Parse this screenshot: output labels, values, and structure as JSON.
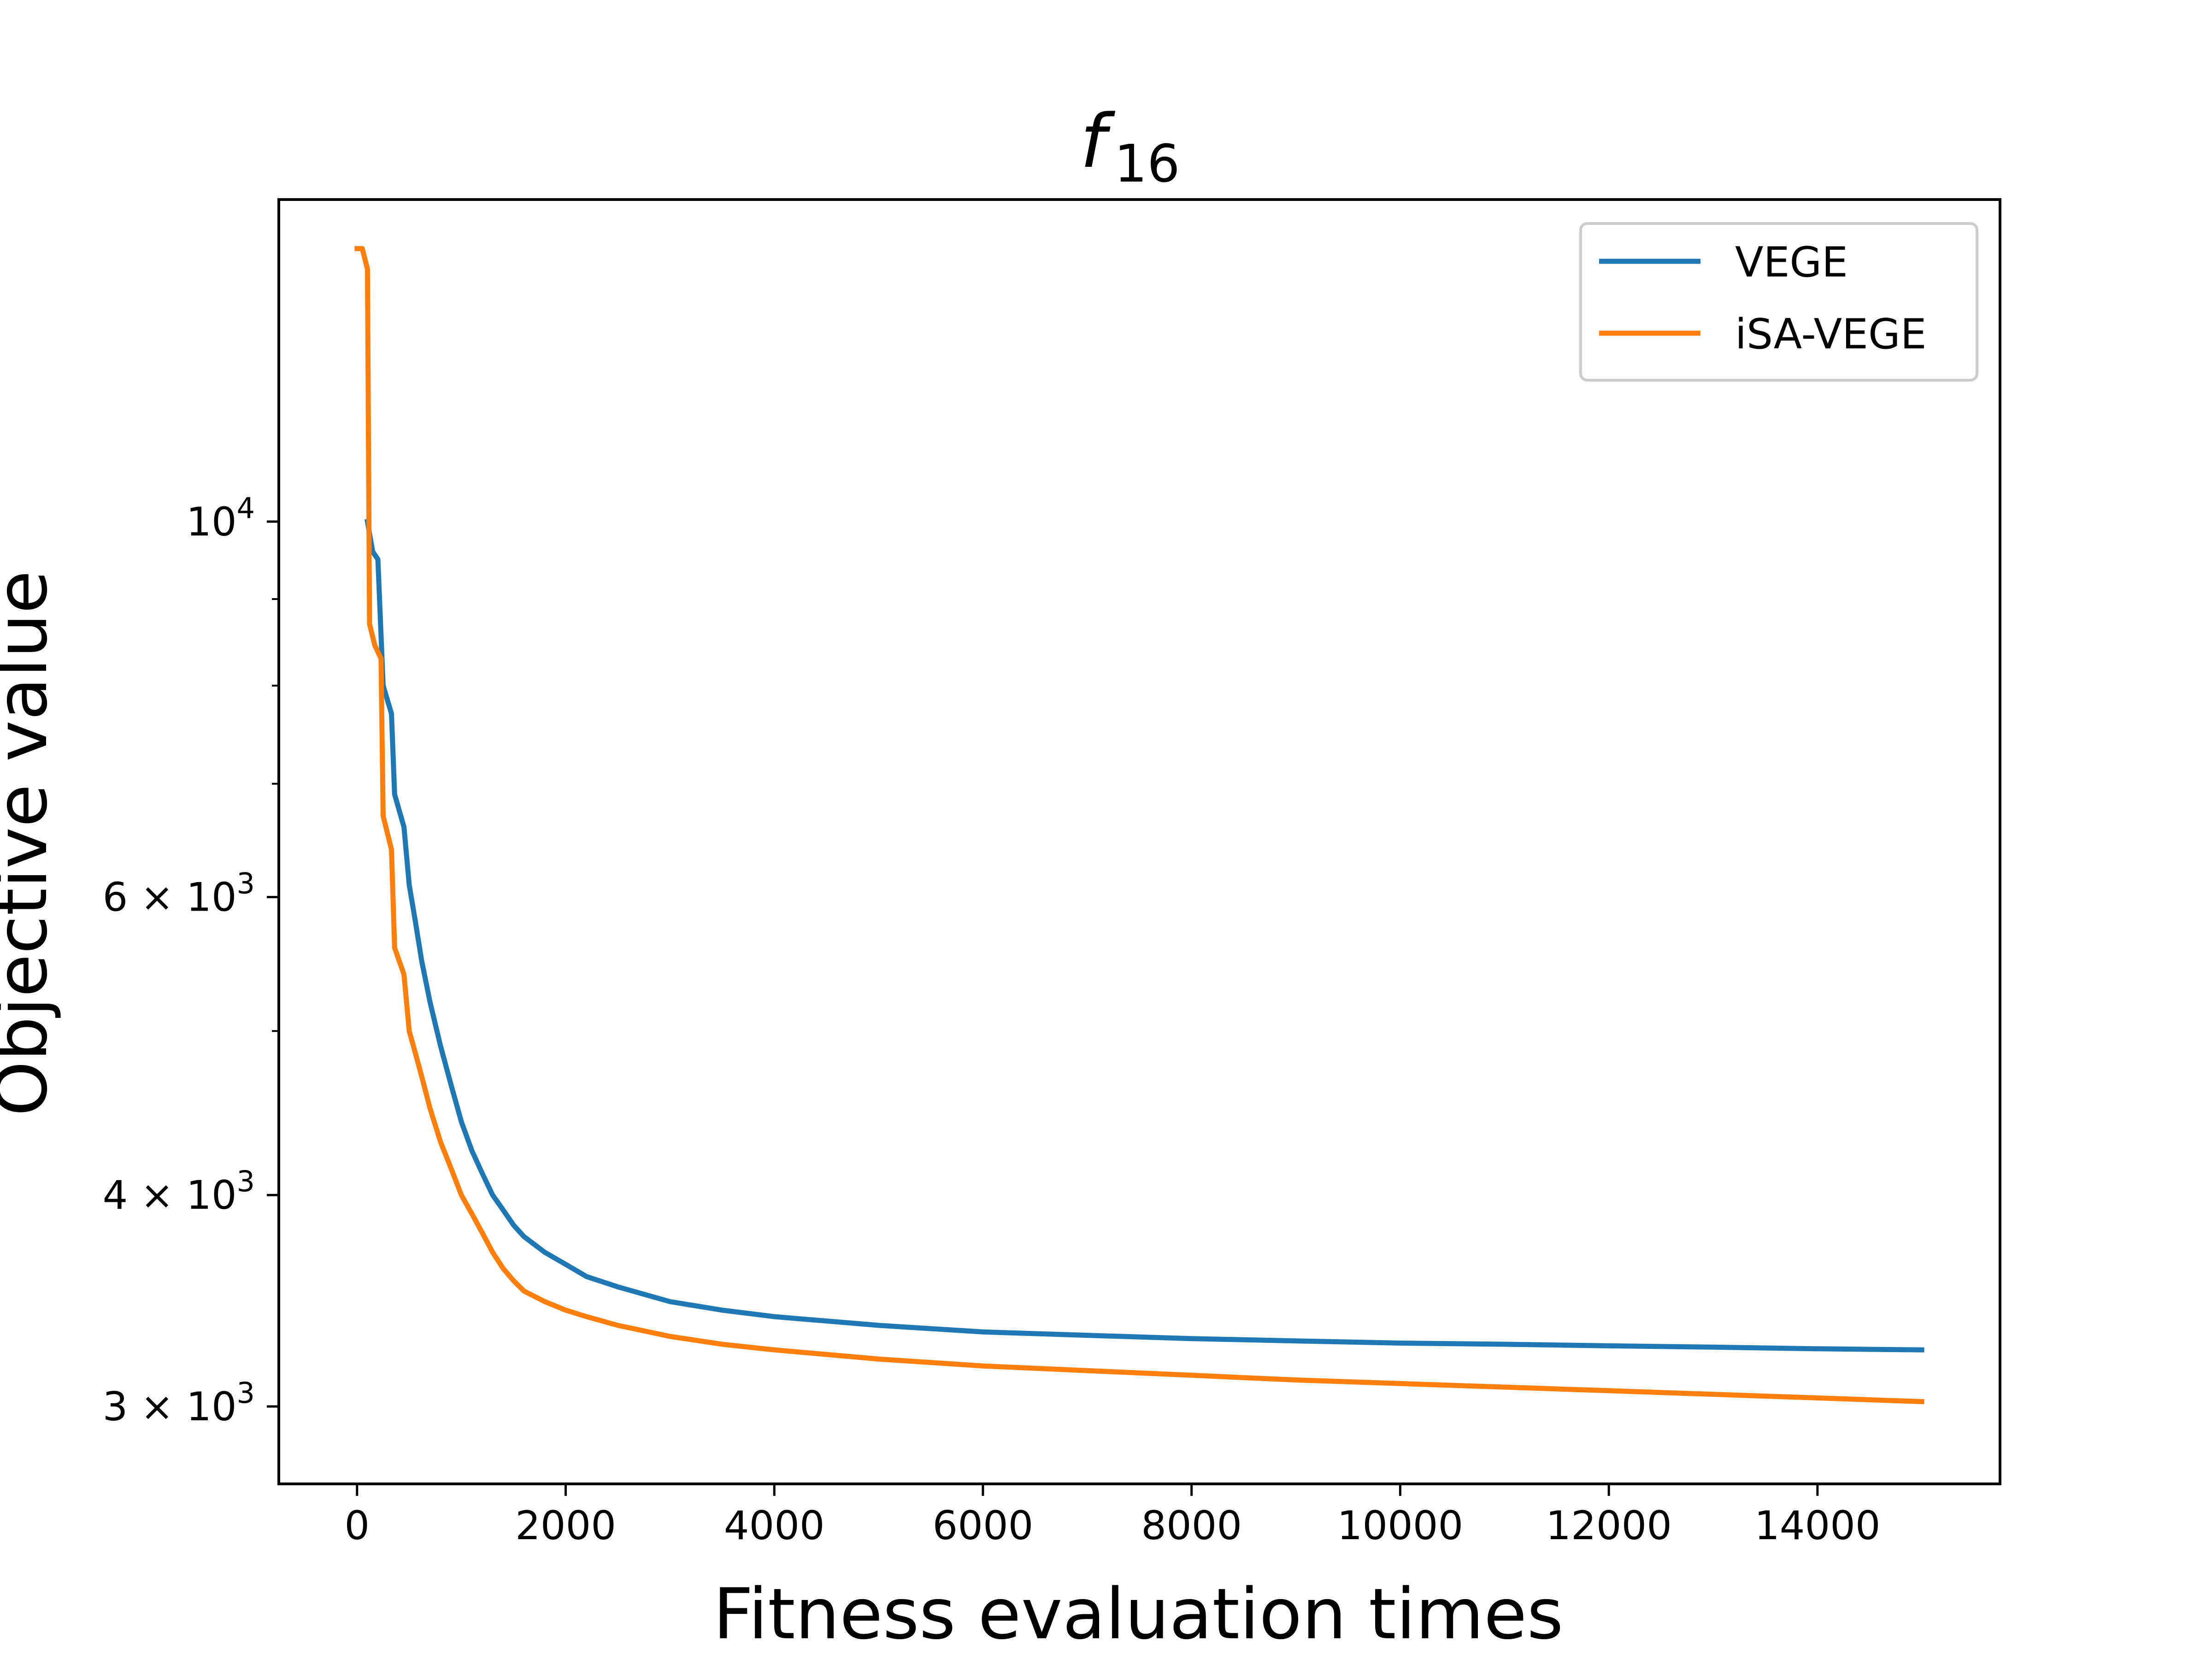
{
  "chart_data": {
    "type": "line",
    "title": {
      "base": "f",
      "subscript": "16"
    },
    "xlabel": "Fitness evaluation times",
    "ylabel": "Objective value",
    "xlim": [
      -750,
      15750
    ],
    "ylim": [
      2700,
      15500
    ],
    "yscale": "log",
    "grid": false,
    "legend_position": "upper right",
    "x_ticks": [
      0,
      2000,
      4000,
      6000,
      8000,
      10000,
      12000,
      14000
    ],
    "x_tick_labels": [
      "0",
      "2000",
      "4000",
      "6000",
      "8000",
      "10000",
      "12000",
      "14000"
    ],
    "y_major_ticks": [
      {
        "value": 10000,
        "mantissa": "",
        "base": "10",
        "exponent": "4"
      },
      {
        "value": 6000,
        "mantissa": "6 × ",
        "base": "10",
        "exponent": "3"
      },
      {
        "value": 4000,
        "mantissa": "4 × ",
        "base": "10",
        "exponent": "3"
      },
      {
        "value": 3000,
        "mantissa": "3 × ",
        "base": "10",
        "exponent": "3"
      }
    ],
    "y_minor_ticks": [
      5000,
      7000,
      8000,
      9000
    ],
    "series": [
      {
        "name": "VEGE",
        "color": "#1f77b4",
        "points": [
          [
            100,
            10000
          ],
          [
            150,
            9600
          ],
          [
            200,
            9500
          ],
          [
            250,
            8000
          ],
          [
            330,
            7700
          ],
          [
            360,
            6900
          ],
          [
            450,
            6600
          ],
          [
            500,
            6100
          ],
          [
            560,
            5800
          ],
          [
            620,
            5500
          ],
          [
            700,
            5200
          ],
          [
            800,
            4900
          ],
          [
            900,
            4650
          ],
          [
            1000,
            4420
          ],
          [
            1100,
            4250
          ],
          [
            1200,
            4120
          ],
          [
            1300,
            4000
          ],
          [
            1400,
            3920
          ],
          [
            1500,
            3840
          ],
          [
            1600,
            3780
          ],
          [
            1800,
            3700
          ],
          [
            2000,
            3640
          ],
          [
            2200,
            3580
          ],
          [
            2500,
            3530
          ],
          [
            3000,
            3460
          ],
          [
            3500,
            3420
          ],
          [
            4000,
            3390
          ],
          [
            5000,
            3350
          ],
          [
            6000,
            3320
          ],
          [
            7000,
            3305
          ],
          [
            8000,
            3290
          ],
          [
            9000,
            3280
          ],
          [
            10000,
            3270
          ],
          [
            11000,
            3265
          ],
          [
            12000,
            3258
          ],
          [
            13000,
            3252
          ],
          [
            14000,
            3245
          ],
          [
            15000,
            3240
          ]
        ]
      },
      {
        "name": "iSA-VEGE",
        "color": "#ff7f0e",
        "points": [
          [
            0,
            14500
          ],
          [
            50,
            14500
          ],
          [
            100,
            14100
          ],
          [
            120,
            8700
          ],
          [
            170,
            8450
          ],
          [
            230,
            8300
          ],
          [
            250,
            6700
          ],
          [
            330,
            6400
          ],
          [
            360,
            5600
          ],
          [
            450,
            5400
          ],
          [
            500,
            5000
          ],
          [
            560,
            4850
          ],
          [
            620,
            4700
          ],
          [
            700,
            4500
          ],
          [
            800,
            4300
          ],
          [
            900,
            4150
          ],
          [
            1000,
            4000
          ],
          [
            1100,
            3900
          ],
          [
            1200,
            3800
          ],
          [
            1300,
            3700
          ],
          [
            1400,
            3620
          ],
          [
            1500,
            3560
          ],
          [
            1600,
            3510
          ],
          [
            1800,
            3460
          ],
          [
            2000,
            3420
          ],
          [
            2200,
            3390
          ],
          [
            2500,
            3350
          ],
          [
            3000,
            3300
          ],
          [
            3500,
            3265
          ],
          [
            4000,
            3240
          ],
          [
            5000,
            3200
          ],
          [
            6000,
            3170
          ],
          [
            7000,
            3150
          ],
          [
            8000,
            3130
          ],
          [
            9000,
            3110
          ],
          [
            10000,
            3095
          ],
          [
            11000,
            3080
          ],
          [
            12000,
            3065
          ],
          [
            13000,
            3050
          ],
          [
            14000,
            3035
          ],
          [
            15000,
            3020
          ]
        ]
      }
    ]
  }
}
